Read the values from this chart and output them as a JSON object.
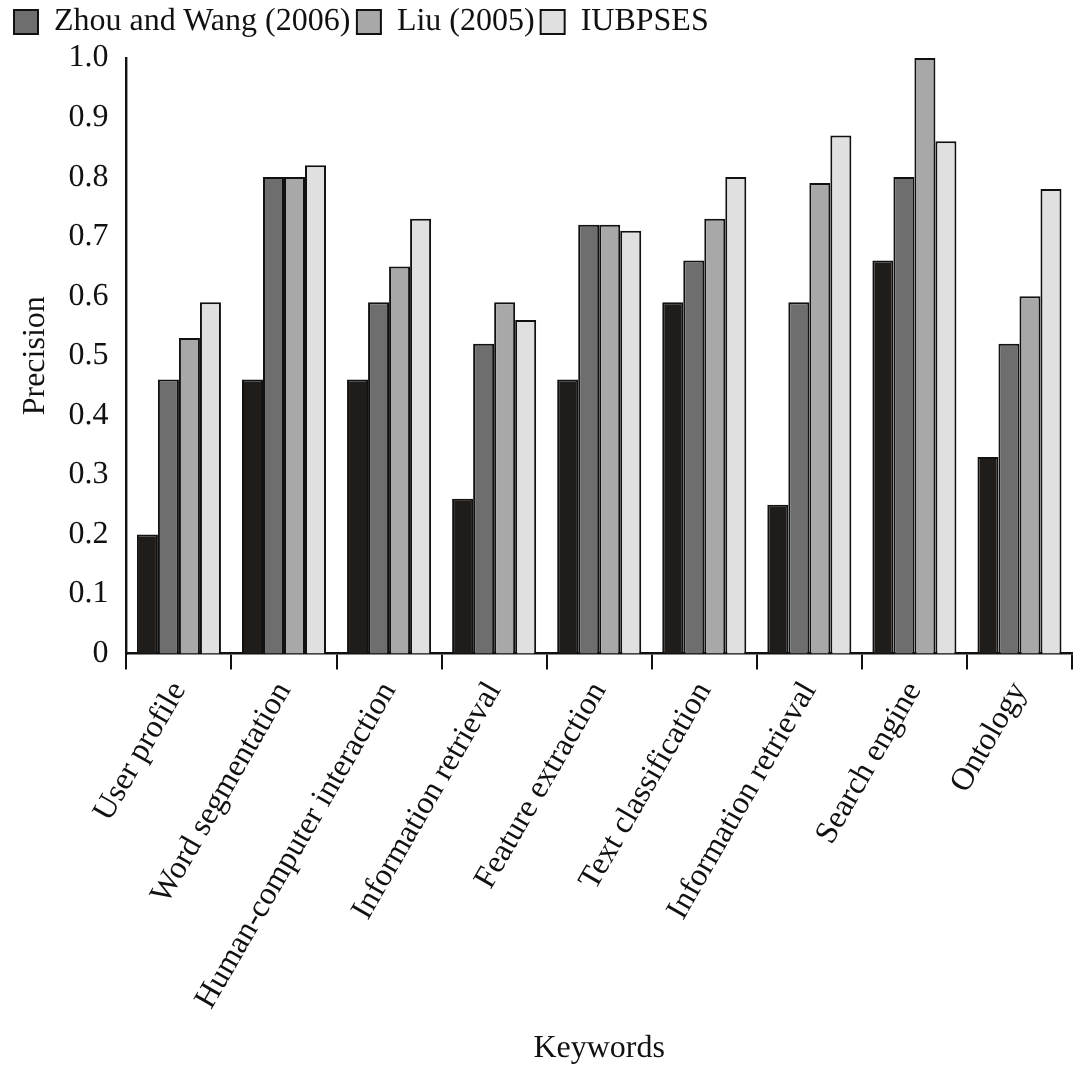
{
  "chart_data": {
    "type": "bar",
    "xlabel": "Keywords",
    "ylabel": "Precision",
    "categories": [
      "User profile",
      "Word segmentation",
      "Human-computer interaction",
      "Information retrieval",
      "Feature extraction",
      "Text classification",
      "Information retrieval",
      "Search engine",
      "Ontology"
    ],
    "series": [
      {
        "color": "#201c1a",
        "values": [
          0.2,
          0.46,
          0.46,
          0.26,
          0.46,
          0.59,
          0.25,
          0.66,
          0.33
        ]
      },
      {
        "name": "Zhou and Wang (2006)",
        "color": "#6e6e6e",
        "values": [
          0.46,
          0.8,
          0.59,
          0.52,
          0.72,
          0.66,
          0.59,
          0.8,
          0.52
        ]
      },
      {
        "name": "Liu (2005)",
        "color": "#a8a8a8",
        "values": [
          0.53,
          0.8,
          0.65,
          0.59,
          0.72,
          0.73,
          0.79,
          1.0,
          0.6
        ]
      },
      {
        "name": "IUBPSES",
        "color": "#e0e0e0",
        "values": [
          0.59,
          0.82,
          0.73,
          0.56,
          0.71,
          0.8,
          0.87,
          0.86,
          0.78
        ]
      }
    ],
    "ylim": [
      0,
      1.0
    ],
    "yticks": [
      0,
      {
        "value": 0.1,
        "label": "0.1"
      },
      {
        "value": 0.2,
        "label": "0.2"
      },
      {
        "value": 0.3,
        "label": "0.3"
      },
      {
        "value": 0.4,
        "label": "0.4"
      },
      {
        "value": 0.5,
        "label": "0.5"
      },
      {
        "value": 0.6,
        "label": "0.6"
      },
      {
        "value": 0.7,
        "label": "0.7"
      },
      {
        "value": 0.8,
        "label": "0.8"
      },
      {
        "value": 0.9,
        "label": "0.9"
      },
      {
        "value": 1.0,
        "label": "1.0"
      }
    ],
    "grid": false,
    "legend": "top left"
  }
}
